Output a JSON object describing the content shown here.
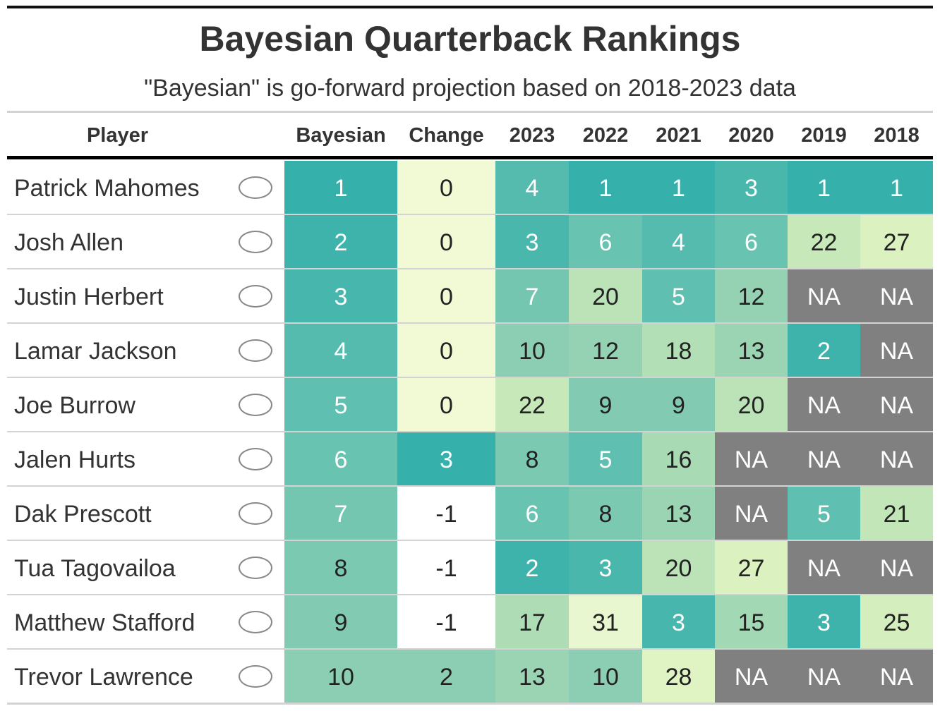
{
  "title": "Bayesian Quarterback Rankings",
  "subtitle": "\"Bayesian\" is go-forward projection based on 2018-2023 data",
  "table": {
    "columns": [
      "Player",
      "Bayesian",
      "Change",
      "2023",
      "2022",
      "2021",
      "2020",
      "2019",
      "2018"
    ],
    "rows": [
      {
        "player": "Patrick Mahomes",
        "cells": [
          1,
          0,
          4,
          1,
          1,
          3,
          1,
          1
        ],
        "colors": [
          "#35b0ab",
          "#f1fad4",
          "#55bbaf",
          "#35b0ab",
          "#35b0ab",
          "#4ab7ad",
          "#35b0ab",
          "#35b0ab"
        ]
      },
      {
        "player": "Josh Allen",
        "cells": [
          2,
          0,
          3,
          6,
          4,
          6,
          22,
          27
        ],
        "colors": [
          "#3db3ac",
          "#f1fad4",
          "#4ab7ad",
          "#69c3b1",
          "#55bbaf",
          "#69c3b1",
          "#c7e8b9",
          "#dbf1c0"
        ]
      },
      {
        "player": "Justin Herbert",
        "cells": [
          3,
          0,
          7,
          20,
          5,
          12,
          "NA",
          "NA"
        ],
        "colors": [
          "#47b7ad",
          "#f1fad4",
          "#74c6b1",
          "#bbe3b7",
          "#5fbfb0",
          "#95d2b3",
          "#808080",
          "#808080"
        ]
      },
      {
        "player": "Lamar Jackson",
        "cells": [
          4,
          0,
          10,
          12,
          18,
          13,
          2,
          "NA"
        ],
        "colors": [
          "#55bbaf",
          "#f1fad4",
          "#8bceb3",
          "#95d2b3",
          "#b2dfb5",
          "#9ad4b3",
          "#3db3ac",
          "#808080"
        ]
      },
      {
        "player": "Joe Burrow",
        "cells": [
          5,
          0,
          22,
          9,
          9,
          20,
          "NA",
          "NA"
        ],
        "colors": [
          "#5fbfb0",
          "#f1fad4",
          "#c7e8b9",
          "#82cbb2",
          "#82cbb2",
          "#bbe3b7",
          "#808080",
          "#808080"
        ]
      },
      {
        "player": "Jalen Hurts",
        "cells": [
          6,
          3,
          8,
          5,
          16,
          "NA",
          "NA",
          "NA"
        ],
        "colors": [
          "#69c3b1",
          "#35b0ab",
          "#7cc9b2",
          "#5fbfb0",
          "#a8dab4",
          "#808080",
          "#808080",
          "#808080"
        ]
      },
      {
        "player": "Dak Prescott",
        "cells": [
          7,
          -1,
          6,
          8,
          13,
          "NA",
          5,
          21
        ],
        "colors": [
          "#74c6b1",
          "#ffffff",
          "#69c3b1",
          "#7cc9b2",
          "#9ad4b3",
          "#808080",
          "#5fbfb0",
          "#c2e6b8"
        ]
      },
      {
        "player": "Tua Tagovailoa",
        "cells": [
          8,
          -1,
          2,
          3,
          20,
          27,
          "NA",
          "NA"
        ],
        "colors": [
          "#7cc9b2",
          "#ffffff",
          "#3db3ac",
          "#4ab7ad",
          "#bbe3b7",
          "#dbf1c0",
          "#808080",
          "#808080"
        ]
      },
      {
        "player": "Matthew Stafford",
        "cells": [
          9,
          -1,
          17,
          31,
          3,
          15,
          3,
          25
        ],
        "colors": [
          "#82cbb2",
          "#ffffff",
          "#addcb5",
          "#e8f7cf",
          "#47b7ad",
          "#a3d8b4",
          "#3db3ac",
          "#d4eebd"
        ]
      },
      {
        "player": "Trevor Lawrence",
        "cells": [
          10,
          2,
          13,
          10,
          28,
          "NA",
          "NA",
          "NA"
        ],
        "colors": [
          "#8bceb3",
          "#8bceb3",
          "#9ad4b3",
          "#8bceb3",
          "#dff3c3",
          "#808080",
          "#808080",
          "#808080"
        ]
      }
    ]
  }
}
